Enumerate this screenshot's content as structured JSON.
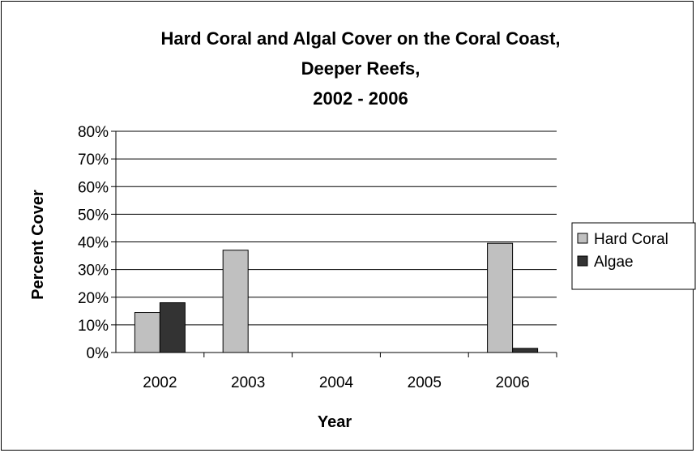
{
  "chart_data": {
    "type": "bar",
    "title_lines": [
      "Hard Coral and Algal Cover on the Coral Coast,",
      "Deeper Reefs,",
      "2002 - 2006"
    ],
    "xlabel": "Year",
    "ylabel": "Percent Cover",
    "categories": [
      "2002",
      "2003",
      "2004",
      "2005",
      "2006"
    ],
    "series": [
      {
        "name": "Hard Coral",
        "values": [
          14.5,
          37,
          null,
          null,
          39.5
        ],
        "color": "#c0c0c0"
      },
      {
        "name": "Algae",
        "values": [
          18,
          null,
          null,
          null,
          1.5
        ],
        "color": "#333333"
      }
    ],
    "ylim": [
      0,
      80
    ],
    "yticks": [
      "0%",
      "10%",
      "20%",
      "30%",
      "40%",
      "50%",
      "60%",
      "70%",
      "80%"
    ],
    "grid": true,
    "legend_position": "right"
  }
}
